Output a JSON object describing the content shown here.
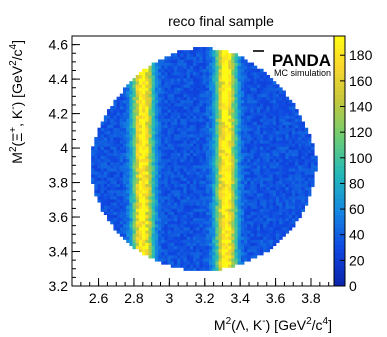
{
  "chart_data": {
    "type": "heatmap",
    "title": "reco final sample",
    "xlabel": {
      "pre": "M",
      "sup1": "2",
      "mid": "(Λ, K",
      "sup2": "-",
      "post1": ") [GeV",
      "sup3": "2",
      "post2": "/c",
      "sup4": "4",
      "post3": "]"
    },
    "ylabel": {
      "pre": "M",
      "sup1": "2",
      "mid1": "(Ξ",
      "sup2": "+",
      "mid2": ", K",
      "sup3": "-",
      "post1": ") [GeV",
      "sup4": "2",
      "post2": "/c",
      "sup5": "4",
      "post3": "]"
    },
    "xlim": [
      2.45,
      3.93
    ],
    "ylim": [
      3.2,
      4.65
    ],
    "xticks": [
      2.6,
      2.8,
      3.0,
      3.2,
      3.4,
      3.6,
      3.8
    ],
    "xtick_labels": [
      "2.6",
      "2.8",
      "3",
      "3.2",
      "3.4",
      "3.6",
      "3.8"
    ],
    "yticks": [
      3.2,
      3.4,
      3.6,
      3.8,
      4.0,
      4.2,
      4.4,
      4.6
    ],
    "ytick_labels": [
      "3.2",
      "3.4",
      "3.6",
      "3.8",
      "4",
      "4.2",
      "4.4",
      "4.6"
    ],
    "zlim": [
      0,
      195
    ],
    "zticks": [
      0,
      20,
      40,
      60,
      80,
      100,
      120,
      140,
      160,
      180
    ],
    "ztick_labels": [
      "0",
      "20",
      "40",
      "60",
      "80",
      "100",
      "120",
      "140",
      "160",
      "180"
    ],
    "region": {
      "x_range": [
        2.55,
        3.83
      ],
      "y_range": [
        3.29,
        4.58
      ],
      "background_level": 35
    },
    "bands": [
      {
        "x": 2.85,
        "peak": 175,
        "width": 0.04
      },
      {
        "x": 3.32,
        "peak": 175,
        "width": 0.04
      }
    ],
    "legend_position": "top-right",
    "logo": {
      "main": "PANDA",
      "sub": "MC simulation"
    }
  }
}
